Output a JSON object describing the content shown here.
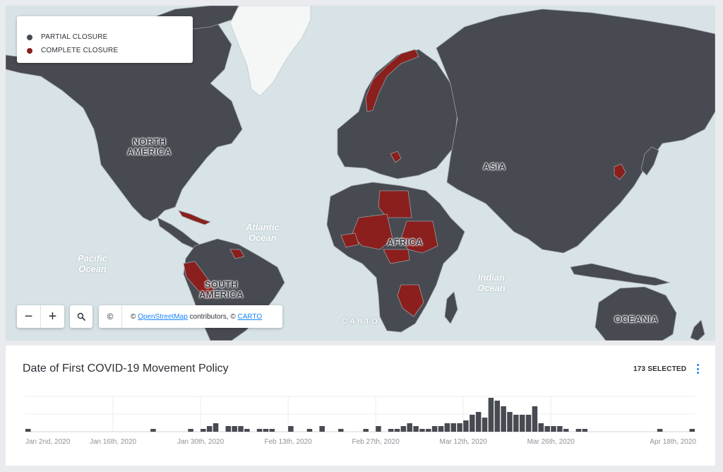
{
  "legend": {
    "items": [
      {
        "label": "PARTIAL CLOSURE",
        "color": "#474a51"
      },
      {
        "label": "COMPLETE CLOSURE",
        "color": "#8a1f1d"
      }
    ]
  },
  "map": {
    "region_labels": {
      "north_america_1": "NORTH",
      "north_america_2": "AMERICA",
      "south_america_1": "SOUTH",
      "south_america_2": "AMERICA",
      "africa": "AFRICA",
      "asia": "ASIA",
      "oceania": "OCEANIA"
    },
    "ocean_labels": {
      "atlantic_1": "Atlantic",
      "atlantic_2": "Ocean",
      "pacific_1": "Pacific",
      "pacific_2": "Ocean",
      "indian_1": "Indian",
      "indian_2": "Ocean"
    },
    "colors": {
      "land": "#474a51",
      "complete": "#8a1f1d",
      "water": "#d7e3e6",
      "ice": "#f5f7f7",
      "border": "#9a9ca2"
    },
    "watermark": "CARTO"
  },
  "controls": {
    "zoom_out": "−",
    "zoom_in": "+",
    "search_icon": "search-icon",
    "info_icon": "©"
  },
  "attribution": {
    "prefix": "© ",
    "osm_link": "OpenStreetMap",
    "middle": " contributors, © ",
    "carto_link": "CARTO"
  },
  "widget": {
    "title": "Date of First COVID-19 Movement Policy",
    "selected": "173 SELECTED",
    "menu_icon": "more-vertical-icon"
  },
  "chart_data": {
    "type": "bar",
    "title": "Date of First COVID-19 Movement Policy",
    "x_tick_labels": [
      "Jan 2nd, 2020",
      "Jan 16th, 2020",
      "Jan 30th, 2020",
      "Feb 13th, 2020",
      "Feb 27th, 2020",
      "Mar 12th, 2020",
      "Mar 26th, 2020",
      "Apr 18th, 2020"
    ],
    "bar_color": "#474a51",
    "grid": true,
    "bins": [
      {
        "x": "2020-01-02",
        "y": 1
      },
      {
        "x": "2020-01-22",
        "y": 1
      },
      {
        "x": "2020-01-28",
        "y": 1
      },
      {
        "x": "2020-01-30",
        "y": 1
      },
      {
        "x": "2020-01-31",
        "y": 2
      },
      {
        "x": "2020-02-01",
        "y": 3
      },
      {
        "x": "2020-02-03",
        "y": 2
      },
      {
        "x": "2020-02-04",
        "y": 2
      },
      {
        "x": "2020-02-05",
        "y": 2
      },
      {
        "x": "2020-02-06",
        "y": 1
      },
      {
        "x": "2020-02-08",
        "y": 1
      },
      {
        "x": "2020-02-09",
        "y": 1
      },
      {
        "x": "2020-02-10",
        "y": 1
      },
      {
        "x": "2020-02-13",
        "y": 2
      },
      {
        "x": "2020-02-16",
        "y": 1
      },
      {
        "x": "2020-02-18",
        "y": 2
      },
      {
        "x": "2020-02-21",
        "y": 1
      },
      {
        "x": "2020-02-25",
        "y": 1
      },
      {
        "x": "2020-02-27",
        "y": 2
      },
      {
        "x": "2020-02-29",
        "y": 1
      },
      {
        "x": "2020-03-01",
        "y": 1
      },
      {
        "x": "2020-03-02",
        "y": 2
      },
      {
        "x": "2020-03-03",
        "y": 3
      },
      {
        "x": "2020-03-04",
        "y": 2
      },
      {
        "x": "2020-03-05",
        "y": 1
      },
      {
        "x": "2020-03-06",
        "y": 1
      },
      {
        "x": "2020-03-07",
        "y": 2
      },
      {
        "x": "2020-03-08",
        "y": 2
      },
      {
        "x": "2020-03-09",
        "y": 3
      },
      {
        "x": "2020-03-10",
        "y": 3
      },
      {
        "x": "2020-03-11",
        "y": 3
      },
      {
        "x": "2020-03-12",
        "y": 4
      },
      {
        "x": "2020-03-13",
        "y": 6
      },
      {
        "x": "2020-03-14",
        "y": 7
      },
      {
        "x": "2020-03-15",
        "y": 5
      },
      {
        "x": "2020-03-16",
        "y": 12
      },
      {
        "x": "2020-03-17",
        "y": 11
      },
      {
        "x": "2020-03-18",
        "y": 9
      },
      {
        "x": "2020-03-19",
        "y": 7
      },
      {
        "x": "2020-03-20",
        "y": 6
      },
      {
        "x": "2020-03-21",
        "y": 6
      },
      {
        "x": "2020-03-22",
        "y": 6
      },
      {
        "x": "2020-03-23",
        "y": 9
      },
      {
        "x": "2020-03-24",
        "y": 3
      },
      {
        "x": "2020-03-25",
        "y": 2
      },
      {
        "x": "2020-03-26",
        "y": 2
      },
      {
        "x": "2020-03-27",
        "y": 2
      },
      {
        "x": "2020-03-28",
        "y": 1
      },
      {
        "x": "2020-03-30",
        "y": 1
      },
      {
        "x": "2020-03-31",
        "y": 1
      },
      {
        "x": "2020-04-12",
        "y": 1
      },
      {
        "x": "2020-04-18",
        "y": 1
      }
    ]
  }
}
